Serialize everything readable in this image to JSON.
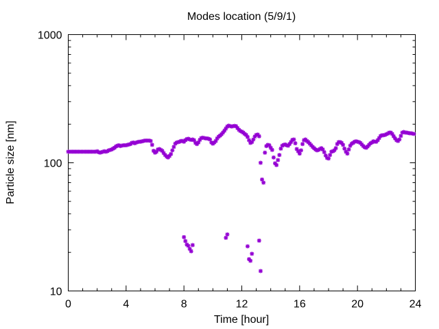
{
  "chart_data": {
    "type": "scatter",
    "title": "Modes location (5/9/1)",
    "xlabel": "Time [hour]",
    "ylabel": "Particle size [nm]",
    "xlim": [
      0,
      24
    ],
    "ylim": [
      10,
      1000
    ],
    "yscale": "log",
    "xticks": [
      0,
      4,
      8,
      12,
      16,
      20,
      24
    ],
    "xtick_labels": [
      "0",
      "4",
      "8",
      "12",
      "16",
      "20",
      "24"
    ],
    "yticks": [
      10,
      100,
      1000
    ],
    "ytick_labels": [
      "10",
      "100",
      "1000"
    ],
    "grid": false,
    "legend": "none",
    "colors": {
      "marker": "#9400d3",
      "axes": "#000000"
    },
    "series": [
      {
        "points": [
          [
            0.0,
            122
          ],
          [
            0.1,
            122
          ],
          [
            0.2,
            122
          ],
          [
            0.3,
            122
          ],
          [
            0.4,
            122
          ],
          [
            0.5,
            122
          ],
          [
            0.6,
            122
          ],
          [
            0.7,
            122
          ],
          [
            0.8,
            122
          ],
          [
            0.9,
            122
          ],
          [
            1.0,
            122
          ],
          [
            1.1,
            122
          ],
          [
            1.2,
            122
          ],
          [
            1.3,
            122
          ],
          [
            1.4,
            122
          ],
          [
            1.5,
            122
          ],
          [
            1.6,
            122
          ],
          [
            1.7,
            122
          ],
          [
            1.8,
            122
          ],
          [
            1.9,
            122
          ],
          [
            2.0,
            123
          ],
          [
            2.1,
            121
          ],
          [
            2.2,
            120
          ],
          [
            2.3,
            121
          ],
          [
            2.4,
            122
          ],
          [
            2.5,
            123
          ],
          [
            2.6,
            122
          ],
          [
            2.7,
            123
          ],
          [
            2.8,
            125
          ],
          [
            2.9,
            126
          ],
          [
            3.0,
            127
          ],
          [
            3.1,
            129
          ],
          [
            3.2,
            131
          ],
          [
            3.3,
            134
          ],
          [
            3.4,
            136
          ],
          [
            3.5,
            137
          ],
          [
            3.6,
            135
          ],
          [
            3.7,
            136
          ],
          [
            3.8,
            137
          ],
          [
            3.9,
            137
          ],
          [
            4.0,
            137
          ],
          [
            4.1,
            138
          ],
          [
            4.2,
            139
          ],
          [
            4.3,
            140
          ],
          [
            4.4,
            143
          ],
          [
            4.5,
            144
          ],
          [
            4.6,
            142
          ],
          [
            4.7,
            144
          ],
          [
            4.8,
            145
          ],
          [
            4.9,
            146
          ],
          [
            5.0,
            146
          ],
          [
            5.1,
            147
          ],
          [
            5.2,
            148
          ],
          [
            5.3,
            149
          ],
          [
            5.4,
            149
          ],
          [
            5.5,
            149
          ],
          [
            5.6,
            149
          ],
          [
            5.7,
            148
          ],
          [
            5.8,
            138
          ],
          [
            5.9,
            124
          ],
          [
            6.0,
            120
          ],
          [
            6.1,
            122
          ],
          [
            6.2,
            127
          ],
          [
            6.3,
            128
          ],
          [
            6.4,
            126
          ],
          [
            6.5,
            124
          ],
          [
            6.6,
            119
          ],
          [
            6.7,
            115
          ],
          [
            6.8,
            112
          ],
          [
            6.9,
            110
          ],
          [
            7.0,
            113
          ],
          [
            7.1,
            117
          ],
          [
            7.2,
            125
          ],
          [
            7.3,
            133
          ],
          [
            7.4,
            141
          ],
          [
            7.5,
            144
          ],
          [
            7.6,
            145
          ],
          [
            7.7,
            146
          ],
          [
            7.8,
            148
          ],
          [
            7.9,
            148
          ],
          [
            8.0,
            146
          ],
          [
            8.1,
            150
          ],
          [
            8.2,
            153
          ],
          [
            8.3,
            154
          ],
          [
            8.4,
            152
          ],
          [
            8.5,
            151
          ],
          [
            8.6,
            152
          ],
          [
            8.7,
            150
          ],
          [
            8.8,
            143
          ],
          [
            8.9,
            140
          ],
          [
            9.0,
            144
          ],
          [
            9.1,
            151
          ],
          [
            9.2,
            156
          ],
          [
            9.3,
            157
          ],
          [
            9.4,
            156
          ],
          [
            9.5,
            155
          ],
          [
            9.6,
            155
          ],
          [
            9.7,
            154
          ],
          [
            9.8,
            152
          ],
          [
            9.9,
            144
          ],
          [
            10.0,
            141
          ],
          [
            10.1,
            144
          ],
          [
            10.2,
            148
          ],
          [
            10.3,
            155
          ],
          [
            10.4,
            160
          ],
          [
            10.5,
            163
          ],
          [
            10.6,
            167
          ],
          [
            10.7,
            172
          ],
          [
            10.8,
            178
          ],
          [
            10.9,
            185
          ],
          [
            11.0,
            192
          ],
          [
            11.1,
            195
          ],
          [
            11.2,
            193
          ],
          [
            11.3,
            192
          ],
          [
            11.4,
            193
          ],
          [
            11.5,
            194
          ],
          [
            11.6,
            193
          ],
          [
            11.7,
            187
          ],
          [
            11.8,
            181
          ],
          [
            11.9,
            177
          ],
          [
            12.0,
            175
          ],
          [
            12.1,
            172
          ],
          [
            12.2,
            168
          ],
          [
            12.3,
            165
          ],
          [
            12.4,
            159
          ],
          [
            12.5,
            150
          ],
          [
            12.6,
            143
          ],
          [
            12.7,
            145
          ],
          [
            12.8,
            152
          ],
          [
            12.9,
            160
          ],
          [
            13.0,
            165
          ],
          [
            13.1,
            166
          ],
          [
            13.2,
            161
          ],
          [
            13.3,
            100
          ],
          [
            13.4,
            74
          ],
          [
            13.5,
            70
          ],
          [
            13.6,
            120
          ],
          [
            13.7,
            135
          ],
          [
            13.8,
            138
          ],
          [
            13.9,
            137
          ],
          [
            14.0,
            131
          ],
          [
            14.1,
            126
          ],
          [
            14.2,
            110
          ],
          [
            14.3,
            99
          ],
          [
            14.4,
            96
          ],
          [
            14.5,
            105
          ],
          [
            14.6,
            115
          ],
          [
            14.7,
            129
          ],
          [
            14.8,
            136
          ],
          [
            14.9,
            138
          ],
          [
            15.0,
            139
          ],
          [
            15.1,
            137
          ],
          [
            15.2,
            136
          ],
          [
            15.3,
            140
          ],
          [
            15.4,
            145
          ],
          [
            15.5,
            151
          ],
          [
            15.6,
            152
          ],
          [
            15.7,
            142
          ],
          [
            15.8,
            128
          ],
          [
            15.9,
            123
          ],
          [
            16.0,
            118
          ],
          [
            16.1,
            125
          ],
          [
            16.2,
            140
          ],
          [
            16.3,
            150
          ],
          [
            16.4,
            152
          ],
          [
            16.5,
            148
          ],
          [
            16.6,
            145
          ],
          [
            16.7,
            141
          ],
          [
            16.8,
            137
          ],
          [
            16.9,
            133
          ],
          [
            17.0,
            130
          ],
          [
            17.1,
            127
          ],
          [
            17.2,
            125
          ],
          [
            17.3,
            126
          ],
          [
            17.4,
            128
          ],
          [
            17.5,
            130
          ],
          [
            17.6,
            127
          ],
          [
            17.7,
            121
          ],
          [
            17.8,
            114
          ],
          [
            17.9,
            109
          ],
          [
            18.0,
            108
          ],
          [
            18.1,
            115
          ],
          [
            18.2,
            122
          ],
          [
            18.3,
            123
          ],
          [
            18.4,
            125
          ],
          [
            18.5,
            130
          ],
          [
            18.6,
            140
          ],
          [
            18.7,
            145
          ],
          [
            18.8,
            145
          ],
          [
            18.9,
            143
          ],
          [
            19.0,
            138
          ],
          [
            19.1,
            129
          ],
          [
            19.2,
            122
          ],
          [
            19.3,
            118
          ],
          [
            19.4,
            127
          ],
          [
            19.5,
            136
          ],
          [
            19.6,
            141
          ],
          [
            19.7,
            143
          ],
          [
            19.8,
            146
          ],
          [
            19.9,
            147
          ],
          [
            20.0,
            146
          ],
          [
            20.1,
            145
          ],
          [
            20.2,
            143
          ],
          [
            20.3,
            139
          ],
          [
            20.4,
            135
          ],
          [
            20.5,
            132
          ],
          [
            20.6,
            131
          ],
          [
            20.7,
            134
          ],
          [
            20.8,
            138
          ],
          [
            20.9,
            142
          ],
          [
            21.0,
            144
          ],
          [
            21.1,
            147
          ],
          [
            21.2,
            146
          ],
          [
            21.3,
            146
          ],
          [
            21.4,
            150
          ],
          [
            21.5,
            156
          ],
          [
            21.6,
            162
          ],
          [
            21.7,
            164
          ],
          [
            21.8,
            164
          ],
          [
            21.9,
            165
          ],
          [
            22.0,
            167
          ],
          [
            22.1,
            169
          ],
          [
            22.2,
            172
          ],
          [
            22.3,
            172
          ],
          [
            22.4,
            168
          ],
          [
            22.5,
            161
          ],
          [
            22.6,
            155
          ],
          [
            22.7,
            150
          ],
          [
            22.8,
            148
          ],
          [
            22.9,
            152
          ],
          [
            23.0,
            162
          ],
          [
            23.1,
            172
          ],
          [
            23.2,
            174
          ],
          [
            23.3,
            172
          ],
          [
            23.4,
            172
          ],
          [
            23.5,
            171
          ],
          [
            23.6,
            170
          ],
          [
            23.7,
            170
          ],
          [
            23.8,
            169
          ],
          [
            23.9,
            168
          ],
          [
            8.0,
            26.3
          ],
          [
            8.1,
            24.5
          ],
          [
            8.2,
            23.0
          ],
          [
            8.3,
            22.5
          ],
          [
            8.4,
            21.3
          ],
          [
            8.5,
            20.4
          ],
          [
            8.6,
            22.8
          ],
          [
            10.9,
            26.0
          ],
          [
            11.0,
            27.6
          ],
          [
            12.4,
            22.3
          ],
          [
            12.5,
            17.7
          ],
          [
            12.6,
            17.2
          ],
          [
            12.7,
            19.5
          ],
          [
            13.2,
            24.7
          ],
          [
            13.3,
            14.3
          ]
        ]
      }
    ]
  }
}
